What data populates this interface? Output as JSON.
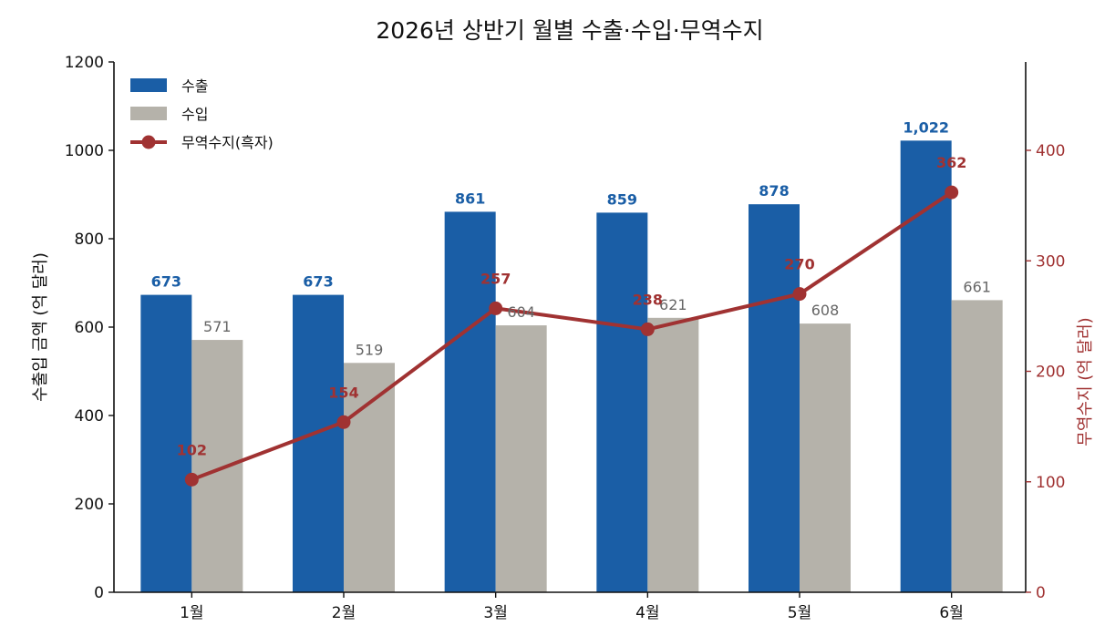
{
  "chart_data": {
    "type": "bar",
    "title": "2026년 상반기 월별 수출·수입·무역수지",
    "categories": [
      "1월",
      "2월",
      "3월",
      "4월",
      "5월",
      "6월"
    ],
    "ylabel": "수출입 금액 (억 달러)",
    "ylabel_right": "무역수지 (억 달러)",
    "ylim": [
      0,
      1200
    ],
    "ylim_right": [
      0,
      480
    ],
    "yticks": [
      "0",
      "200",
      "400",
      "600",
      "800",
      "1000",
      "1200"
    ],
    "yticks_right": [
      "0",
      "100",
      "200",
      "300",
      "400"
    ],
    "legend_position": "top-left",
    "grid": false,
    "series": [
      {
        "name": "수출",
        "kind": "bar",
        "axis": "left",
        "color": "#1a5ea6",
        "values": [
          673,
          673,
          861,
          859,
          878,
          1022
        ],
        "labels": [
          "673",
          "673",
          "861",
          "859",
          "878",
          "1,022"
        ]
      },
      {
        "name": "수입",
        "kind": "bar",
        "axis": "left",
        "color": "#b5b2aa",
        "values": [
          571,
          519,
          604,
          621,
          608,
          661
        ],
        "labels": [
          "571",
          "519",
          "604",
          "621",
          "608",
          "661"
        ]
      },
      {
        "name": "무역수지(흑자)",
        "kind": "line",
        "axis": "right",
        "color": "#a03232",
        "values": [
          102,
          154,
          257,
          238,
          270,
          362
        ],
        "labels": [
          "102",
          "154",
          "257",
          "238",
          "270",
          "362"
        ]
      }
    ],
    "colors": {
      "axis": "#111111",
      "right_axis": "#a03232",
      "label_export": "#1a5ea6",
      "label_import": "#666666",
      "label_balance": "#a03232"
    }
  }
}
